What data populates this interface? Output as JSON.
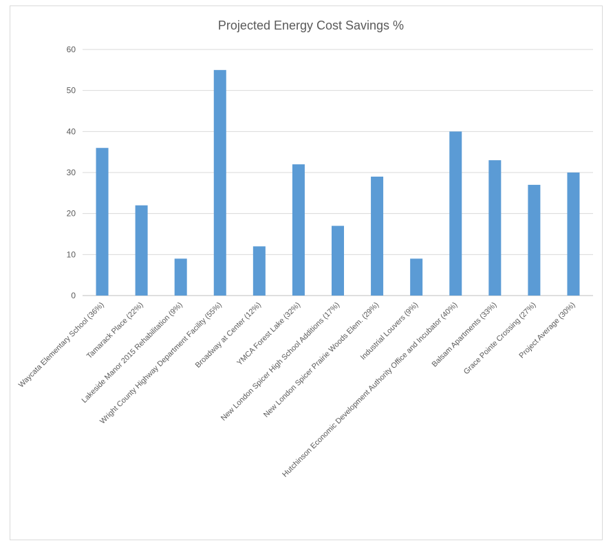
{
  "chart_data": {
    "type": "bar",
    "title": "Projected Energy Cost Savings %",
    "xlabel": "",
    "ylabel": "",
    "ylim": [
      0,
      60
    ],
    "yticks": [
      0,
      10,
      20,
      30,
      40,
      50,
      60
    ],
    "grid": true,
    "legend": "none",
    "bar_color": "#5b9bd5",
    "categories": [
      "Waycata Elementary School (36%)",
      "Tamarack Place (22%)",
      "Lakeside Manor 2015 Rehabilitation (9%)",
      "Wright County Highway Department Facility (55%)",
      "Broadway at Center (12%)",
      "YMCA Forest Lake (32%)",
      "New London Spicer High School Additions (17%)",
      "New London Spicer Prairie Woods Elem. (29%)",
      "Industrial Louvers (9%)",
      "Hutchinson Economic Development Authority Office and Incubator (40%)",
      "Balsam Apartments (33%)",
      "Grace Pointe Crossing (27%)",
      "Project Average (30%)"
    ],
    "values": [
      36,
      22,
      9,
      55,
      12,
      32,
      17,
      29,
      9,
      40,
      33,
      27,
      30
    ]
  }
}
